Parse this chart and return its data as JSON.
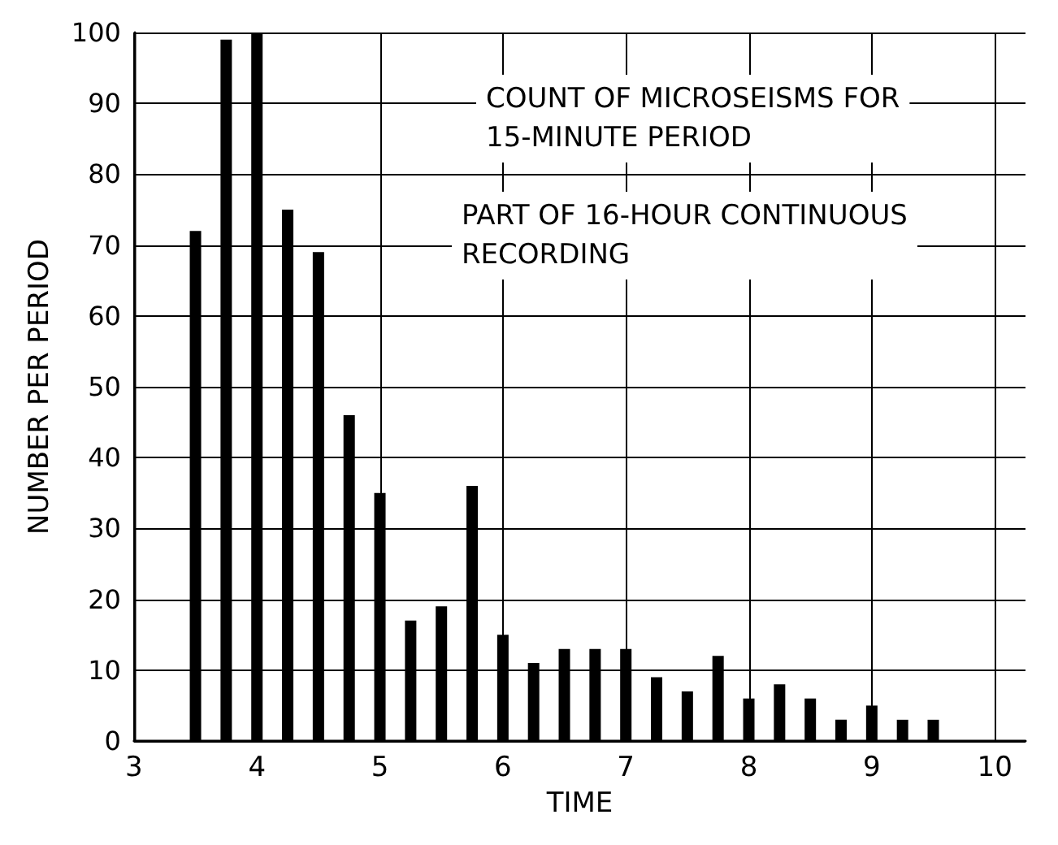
{
  "chart_data": {
    "type": "bar",
    "xlabel": "TIME",
    "ylabel": "NUMBER PER PERIOD",
    "annotations": [
      "COUNT OF MICROSEISMS FOR\n15-MINUTE PERIOD",
      "PART OF 16-HOUR CONTINUOUS\nRECORDING"
    ],
    "x": [
      3.5,
      3.75,
      4,
      4.25,
      4.5,
      4.75,
      5,
      5.25,
      5.5,
      5.75,
      6,
      6.25,
      6.5,
      6.75,
      7,
      7.25,
      7.5,
      7.75,
      8,
      8.25,
      8.5,
      8.75,
      9,
      9.25,
      9.5
    ],
    "values": [
      72,
      99,
      100,
      75,
      69,
      46,
      35,
      17,
      19,
      36,
      15,
      11,
      13,
      13,
      13,
      9,
      7,
      12,
      6,
      8,
      6,
      3,
      5,
      3,
      3
    ],
    "color": "#000000",
    "xlim": [
      3,
      10.25
    ],
    "xticks": [
      3,
      4,
      5,
      6,
      7,
      8,
      9,
      10
    ],
    "ylim": [
      0,
      100
    ],
    "yticks": [
      0,
      10,
      20,
      30,
      40,
      50,
      60,
      70,
      80,
      90,
      100
    ],
    "grid": true
  }
}
